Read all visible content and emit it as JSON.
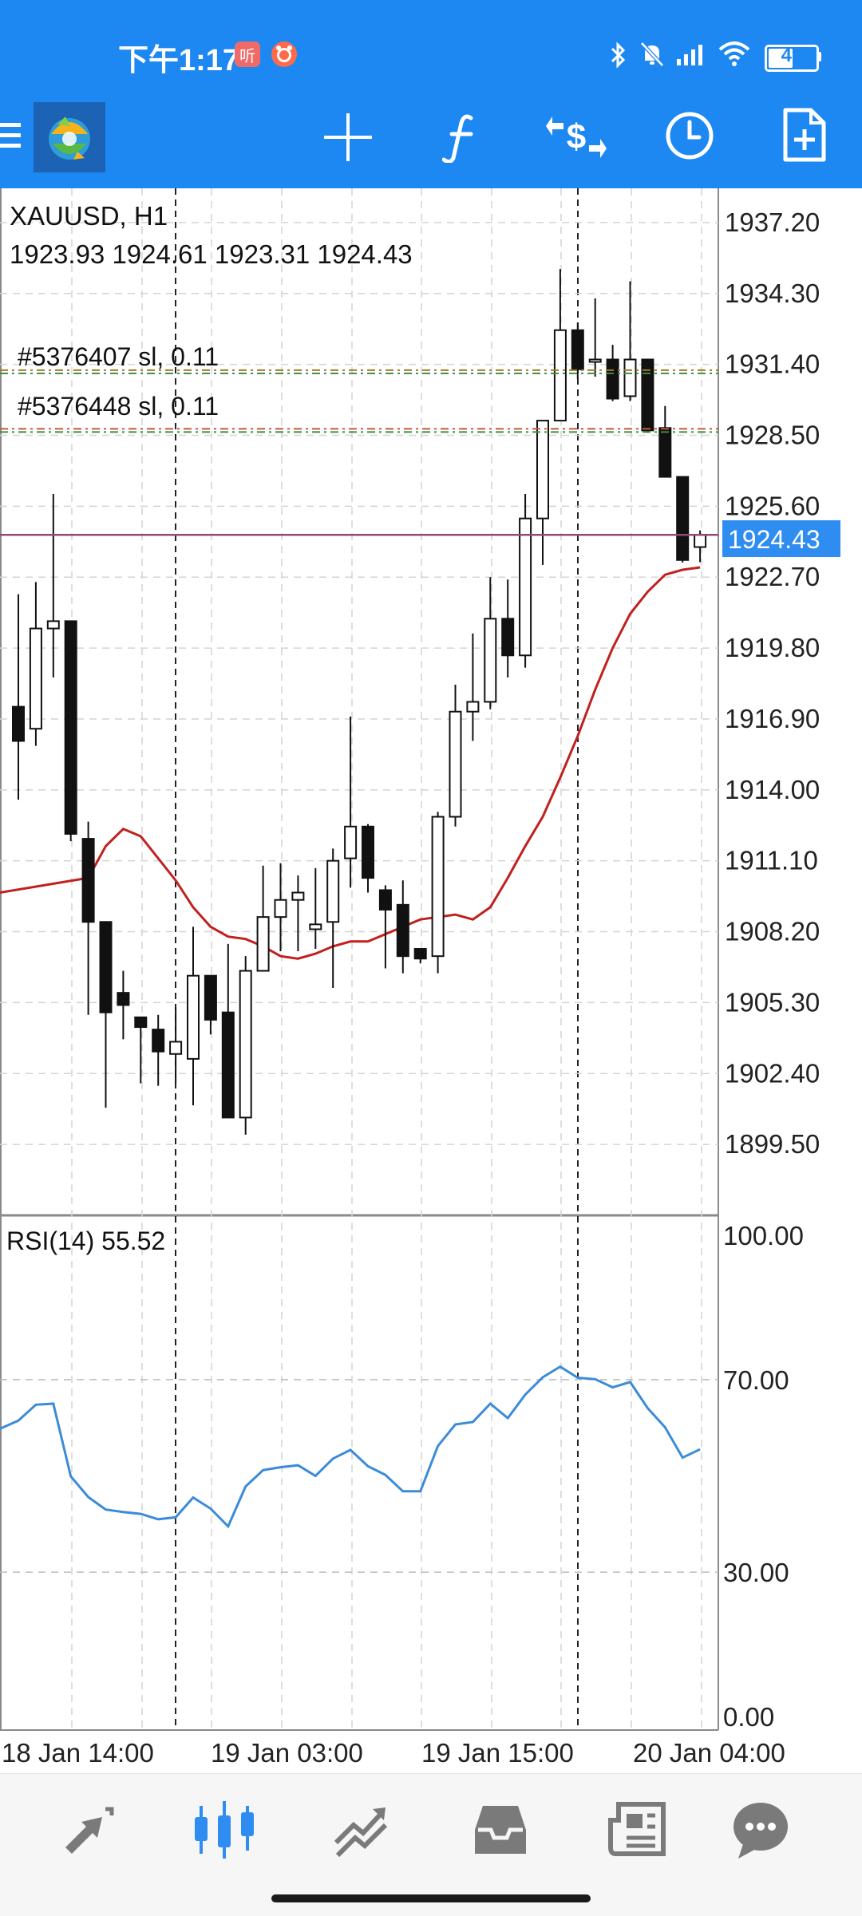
{
  "status_bar": {
    "time": "下午1:17",
    "badge1": "听",
    "battery": "49"
  },
  "toolbar": {
    "icons": [
      "menu-icon",
      "metatrader-logo-icon",
      "crosshair-icon",
      "indicators-icon",
      "trade-icon",
      "timeframe-clock-icon",
      "new-order-icon"
    ]
  },
  "chart": {
    "symbol_tf": "XAUUSD, H1",
    "ohlc": "1923.93 1924.61 1923.31 1924.43",
    "order_lines": [
      "#5376407 sl, 0.11",
      "#5376448 sl, 0.11"
    ],
    "current_price": "1924.43",
    "price_labels": [
      "1937.20",
      "1934.30",
      "1931.40",
      "1928.50",
      "1925.60",
      "1922.70",
      "1919.80",
      "1916.90",
      "1914.00",
      "1911.10",
      "1908.20",
      "1905.30",
      "1902.40",
      "1899.50"
    ],
    "rsi_label": "RSI(14) 55.52",
    "rsi_labels": [
      "100.00",
      "70.00",
      "30.00",
      "0.00"
    ],
    "time_labels": [
      "18 Jan 14:00",
      "19 Jan 03:00",
      "19 Jan 15:00",
      "20 Jan 04:00"
    ],
    "colors": {
      "price_line": "#8e4a7b",
      "price_tag_bg": "#2f8df1",
      "ma_line": "#c0211f",
      "rsi_line": "#3b8bd9"
    }
  },
  "chart_data": [
    {
      "type": "candlestick",
      "title": "XAUUSD, H1",
      "ylim": [
        1896.6,
        1938.6
      ],
      "candles": [
        {
          "o": 1917.4,
          "h": 1922.0,
          "l": 1913.6,
          "c": 1916.0
        },
        {
          "o": 1916.5,
          "h": 1922.5,
          "l": 1915.8,
          "c": 1920.6
        },
        {
          "o": 1920.6,
          "h": 1926.1,
          "l": 1918.6,
          "c": 1920.9
        },
        {
          "o": 1920.9,
          "h": 1920.9,
          "l": 1911.9,
          "c": 1912.2
        },
        {
          "o": 1912.0,
          "h": 1912.7,
          "l": 1904.8,
          "c": 1908.6
        },
        {
          "o": 1908.6,
          "h": 1908.6,
          "l": 1901.0,
          "c": 1904.9
        },
        {
          "o": 1905.7,
          "h": 1906.6,
          "l": 1903.8,
          "c": 1905.2
        },
        {
          "o": 1904.7,
          "h": 1904.7,
          "l": 1902.0,
          "c": 1904.3
        },
        {
          "o": 1904.2,
          "h": 1904.8,
          "l": 1901.9,
          "c": 1903.3
        },
        {
          "o": 1903.2,
          "h": 1905.1,
          "l": 1902.0,
          "c": 1903.7
        },
        {
          "o": 1903.0,
          "h": 1908.4,
          "l": 1901.1,
          "c": 1906.4
        },
        {
          "o": 1906.4,
          "h": 1906.4,
          "l": 1904.0,
          "c": 1904.6
        },
        {
          "o": 1904.9,
          "h": 1907.7,
          "l": 1900.6,
          "c": 1900.6
        },
        {
          "o": 1900.6,
          "h": 1907.2,
          "l": 1899.9,
          "c": 1906.6
        },
        {
          "o": 1906.6,
          "h": 1910.9,
          "l": 1906.6,
          "c": 1908.8
        },
        {
          "o": 1908.8,
          "h": 1911.0,
          "l": 1907.4,
          "c": 1909.5
        },
        {
          "o": 1909.5,
          "h": 1910.5,
          "l": 1907.4,
          "c": 1909.8
        },
        {
          "o": 1908.3,
          "h": 1910.8,
          "l": 1907.5,
          "c": 1908.5
        },
        {
          "o": 1908.6,
          "h": 1911.6,
          "l": 1905.9,
          "c": 1911.1
        },
        {
          "o": 1911.2,
          "h": 1917.0,
          "l": 1910.0,
          "c": 1912.5
        },
        {
          "o": 1912.5,
          "h": 1912.6,
          "l": 1909.8,
          "c": 1910.4
        },
        {
          "o": 1909.9,
          "h": 1910.1,
          "l": 1906.7,
          "c": 1909.1
        },
        {
          "o": 1909.3,
          "h": 1910.3,
          "l": 1906.5,
          "c": 1907.2
        },
        {
          "o": 1907.5,
          "h": 1907.5,
          "l": 1906.9,
          "c": 1907.1
        },
        {
          "o": 1907.2,
          "h": 1913.1,
          "l": 1906.5,
          "c": 1912.9
        },
        {
          "o": 1912.9,
          "h": 1918.3,
          "l": 1912.5,
          "c": 1917.2
        },
        {
          "o": 1917.2,
          "h": 1920.4,
          "l": 1916.0,
          "c": 1917.6
        },
        {
          "o": 1917.6,
          "h": 1922.7,
          "l": 1917.3,
          "c": 1921.0
        },
        {
          "o": 1921.0,
          "h": 1922.6,
          "l": 1918.6,
          "c": 1919.5
        },
        {
          "o": 1919.5,
          "h": 1926.1,
          "l": 1919.0,
          "c": 1925.1
        },
        {
          "o": 1925.1,
          "h": 1929.1,
          "l": 1923.2,
          "c": 1929.1
        },
        {
          "o": 1929.1,
          "h": 1935.3,
          "l": 1929.1,
          "c": 1932.8
        },
        {
          "o": 1932.8,
          "h": 1933.1,
          "l": 1930.8,
          "c": 1931.2
        },
        {
          "o": 1931.5,
          "h": 1934.1,
          "l": 1930.9,
          "c": 1931.6
        },
        {
          "o": 1931.6,
          "h": 1932.2,
          "l": 1929.9,
          "c": 1930.0
        },
        {
          "o": 1930.1,
          "h": 1934.8,
          "l": 1929.9,
          "c": 1931.6
        },
        {
          "o": 1931.6,
          "h": 1931.6,
          "l": 1928.6,
          "c": 1928.7
        },
        {
          "o": 1928.8,
          "h": 1929.7,
          "l": 1926.8,
          "c": 1926.8
        },
        {
          "o": 1926.8,
          "h": 1926.8,
          "l": 1923.3,
          "c": 1923.4
        },
        {
          "o": 1923.93,
          "h": 1924.61,
          "l": 1923.31,
          "c": 1924.43
        }
      ],
      "ma": [
        1910.4,
        1911.7,
        1912.4,
        1912.1,
        1911.2,
        1910.3,
        1909.2,
        1908.4,
        1908.0,
        1907.9,
        1907.6,
        1907.2,
        1907.1,
        1907.3,
        1907.6,
        1907.8,
        1907.8,
        1908.1,
        1908.4,
        1908.7,
        1908.8,
        1908.9,
        1908.7,
        1909.2,
        1910.4,
        1911.7,
        1912.9,
        1914.5,
        1916.2,
        1918.1,
        1919.8,
        1921.2,
        1922.1,
        1922.8,
        1923.0,
        1923.1
      ],
      "order_levels": [
        1931.1,
        1928.7
      ],
      "current": 1924.43,
      "order_colors": [
        [
          "#a07a2f",
          "#3f8f3f"
        ],
        [
          "#c25a3a",
          "#3f8f3f"
        ]
      ]
    },
    {
      "type": "line",
      "title": "RSI(14) 55.52",
      "ylim": [
        0,
        100
      ],
      "levels": [
        70,
        30
      ],
      "values": [
        61.5,
        64.8,
        65.0,
        49.9,
        45.6,
        43.0,
        42.5,
        42.1,
        41.0,
        41.4,
        45.5,
        43.2,
        39.5,
        47.8,
        51.2,
        51.8,
        52.2,
        50.0,
        53.6,
        55.4,
        52.0,
        50.2,
        46.8,
        46.8,
        56.2,
        60.7,
        61.2,
        65.0,
        62.0,
        66.9,
        70.5,
        72.7,
        70.4,
        70.1,
        68.4,
        69.5,
        64.1,
        60.1,
        53.8,
        55.52
      ]
    }
  ]
}
